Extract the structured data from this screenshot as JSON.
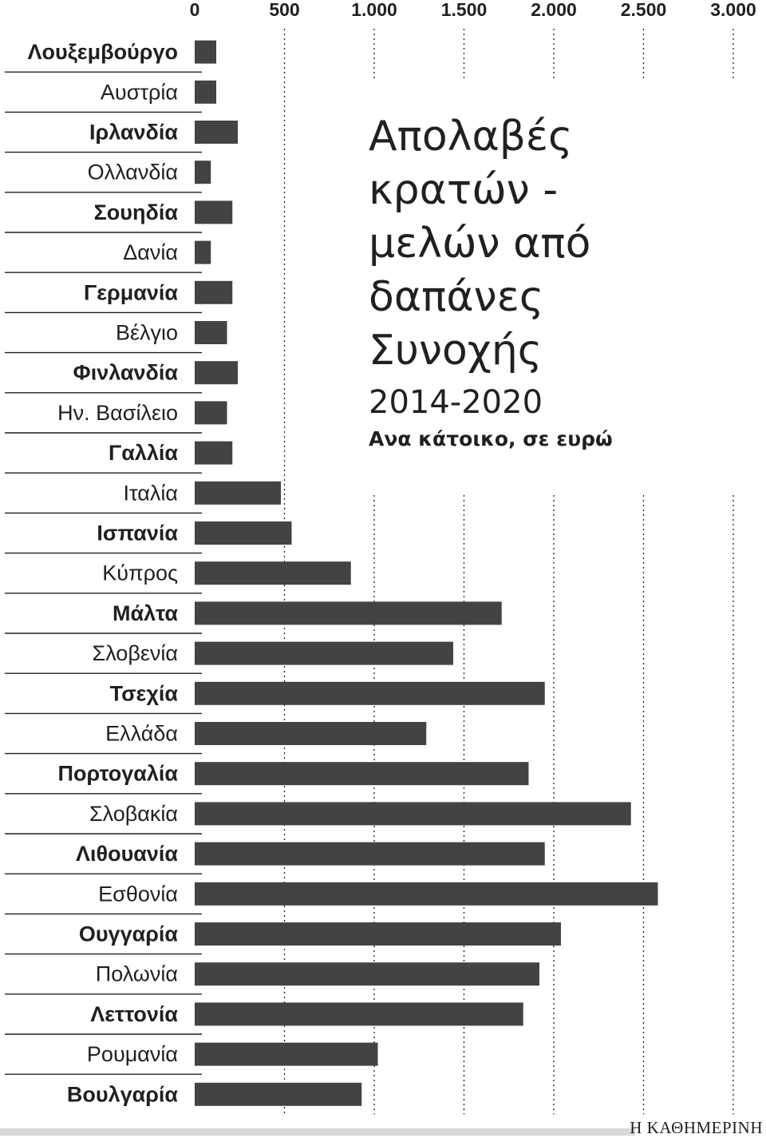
{
  "chart_data": {
    "type": "bar",
    "orientation": "horizontal",
    "title": "Απολαβές κρατών - μελών από δαπάνες Συνοχής",
    "subtitle": "2014-2020",
    "unit_label": "Ανα κάτοικο, σε ευρώ",
    "xlim": [
      0,
      3000
    ],
    "x_ticks": [
      0,
      500,
      1000,
      1500,
      2000,
      2500,
      3000
    ],
    "x_tick_labels": [
      "0",
      "500",
      "1.000",
      "1.500",
      "2.000",
      "2.500",
      "3.000"
    ],
    "grid": "dotted-vertical",
    "bar_color": "#434343",
    "categories": [
      "Λουξεμβούργο",
      "Αυστρία",
      "Ιρλανδία",
      "Ολλανδία",
      "Σουηδία",
      "Δανία",
      "Γερμανία",
      "Βέλγιο",
      "Φινλανδία",
      "Ην. Βασίλειο",
      "Γαλλία",
      "Ιταλία",
      "Ισπανία",
      "Κύπρος",
      "Μάλτα",
      "Σλοβενία",
      "Τσεχία",
      "Ελλάδα",
      "Πορτογαλία",
      "Σλοβακία",
      "Λιθουανία",
      "Εσθονία",
      "Ουγγαρία",
      "Πολωνία",
      "Λεττονία",
      "Ρουμανία",
      "Βουλγαρία"
    ],
    "values": [
      120,
      120,
      240,
      90,
      210,
      90,
      210,
      180,
      240,
      180,
      210,
      480,
      540,
      870,
      1710,
      1440,
      1950,
      1290,
      1860,
      2430,
      1950,
      2580,
      2040,
      1920,
      1830,
      1020,
      930
    ],
    "bold_label_indices": [
      0,
      2,
      4,
      6,
      8,
      10,
      12,
      14,
      16,
      18,
      20,
      22,
      24,
      26
    ]
  },
  "source": "Η ΚΑΘΗΜΕΡΙΝΗ",
  "title_lines": "Απολαβές\nκρατών -\nμελών από\nδαπάνες\nΣυνοχής"
}
